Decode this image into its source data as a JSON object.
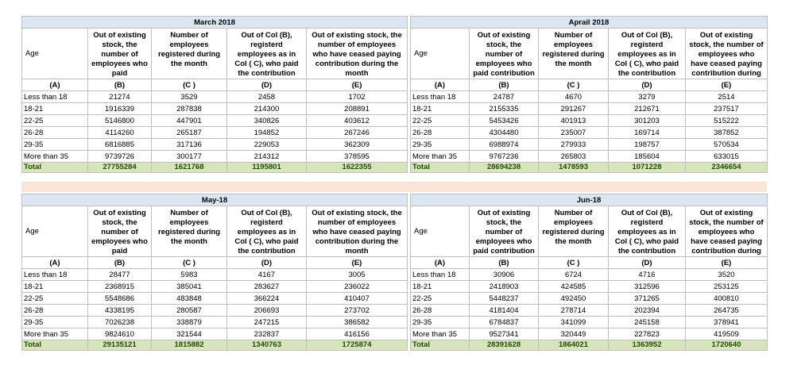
{
  "tables": [
    {
      "title": "March 2018",
      "headers": [
        "Age",
        "Out of existing stock, the number of employees who paid contribution during the month",
        "Number of employees registered during the month",
        "Out of Col (B), registerd employees as in Col ( C), who paid the contribution during the month",
        "Out of existing stock, the number of employees who have ceased paying contribution during the month"
      ],
      "letters": [
        "(A)",
        "(B)",
        "(C )",
        "(D)",
        "(E)"
      ],
      "rows": [
        {
          "label": "Less than 18",
          "values": [
            21274,
            3529,
            2458,
            1702
          ]
        },
        {
          "label": "18-21",
          "values": [
            1916339,
            287838,
            214300,
            208891
          ]
        },
        {
          "label": "22-25",
          "values": [
            5146800,
            447901,
            340826,
            403612
          ]
        },
        {
          "label": "26-28",
          "values": [
            4114260,
            265187,
            194852,
            267246
          ]
        },
        {
          "label": "29-35",
          "values": [
            6816885,
            317136,
            229053,
            362309
          ]
        },
        {
          "label": "More than 35",
          "values": [
            9739726,
            300177,
            214312,
            378595
          ]
        }
      ],
      "total": {
        "label": "Total",
        "values": [
          27755284,
          1621768,
          1195801,
          1622355
        ]
      }
    },
    {
      "title": "Aprail 2018",
      "headers": [
        "Age",
        "Out of existing stock, the number of employees who paid contribution during the month",
        "Number of employees registered during the month",
        "Out of Col (B), registerd employees as in Col ( C), who paid the contribution during the month",
        "Out of existing stock, the number of employees who have ceased paying contribution during the month"
      ],
      "letters": [
        "(A)",
        "(B)",
        "(C )",
        "(D)",
        "(E)"
      ],
      "rows": [
        {
          "label": "Less than 18",
          "values": [
            24787,
            4670,
            3279,
            2514
          ]
        },
        {
          "label": "18-21",
          "values": [
            2155335,
            291267,
            212671,
            237517
          ]
        },
        {
          "label": "22-25",
          "values": [
            5453426,
            401913,
            301203,
            515222
          ]
        },
        {
          "label": "26-28",
          "values": [
            4304480,
            235007,
            169714,
            387852
          ]
        },
        {
          "label": "29-35",
          "values": [
            6988974,
            279933,
            198757,
            570534
          ]
        },
        {
          "label": "More than 35",
          "values": [
            9767236,
            265803,
            185604,
            633015
          ]
        }
      ],
      "total": {
        "label": "Total",
        "values": [
          28694238,
          1478593,
          1071228,
          2346654
        ]
      }
    },
    {
      "title": "May-18",
      "headers": [
        "Age",
        "Out of existing stock, the number of employees who paid contribution during the month",
        "Number of employees registered during the month",
        "Out of Col (B), registerd employees as in Col ( C), who paid the contribution during the month",
        "Out of existing stock, the number of employees who have ceased paying contribution during the month"
      ],
      "letters": [
        "(A)",
        "(B)",
        "(C )",
        "(D)",
        "(E)"
      ],
      "rows": [
        {
          "label": "Less than 18",
          "values": [
            28477,
            5983,
            4167,
            3005
          ]
        },
        {
          "label": "18-21",
          "values": [
            2368915,
            385041,
            283627,
            236022
          ]
        },
        {
          "label": "22-25",
          "values": [
            5548686,
            483848,
            366224,
            410407
          ]
        },
        {
          "label": "26-28",
          "values": [
            4338195,
            280587,
            206693,
            273702
          ]
        },
        {
          "label": "29-35",
          "values": [
            7026238,
            338879,
            247215,
            386582
          ]
        },
        {
          "label": "More than 35",
          "values": [
            9824610,
            321544,
            232837,
            416156
          ]
        }
      ],
      "total": {
        "label": "Total",
        "values": [
          29135121,
          1815882,
          1340763,
          1725874
        ]
      }
    },
    {
      "title": "Jun-18",
      "headers": [
        "Age",
        "Out of existing stock, the number of employees who paid contribution during the month",
        "Number of employees registered during the month",
        "Out of Col (B), registerd employees as in Col ( C), who paid the contribution during the month",
        "Out of existing stock, the number of employees who have ceased paying contribution during the month"
      ],
      "letters": [
        "(A)",
        "(B)",
        "(C )",
        "(D)",
        "(E)"
      ],
      "rows": [
        {
          "label": "Less than 18",
          "values": [
            30906,
            6724,
            4716,
            3520
          ]
        },
        {
          "label": "18-21",
          "values": [
            2418903,
            424585,
            312596,
            253125
          ]
        },
        {
          "label": "22-25",
          "values": [
            5448237,
            492450,
            371265,
            400810
          ]
        },
        {
          "label": "26-28",
          "values": [
            4181404,
            278714,
            202394,
            264735
          ]
        },
        {
          "label": "29-35",
          "values": [
            6784837,
            341099,
            245158,
            378941
          ]
        },
        {
          "label": "More than 35",
          "values": [
            9527341,
            320449,
            227823,
            419509
          ]
        }
      ],
      "total": {
        "label": "Total",
        "values": [
          28391628,
          1864021,
          1363952,
          1720640
        ]
      }
    }
  ]
}
